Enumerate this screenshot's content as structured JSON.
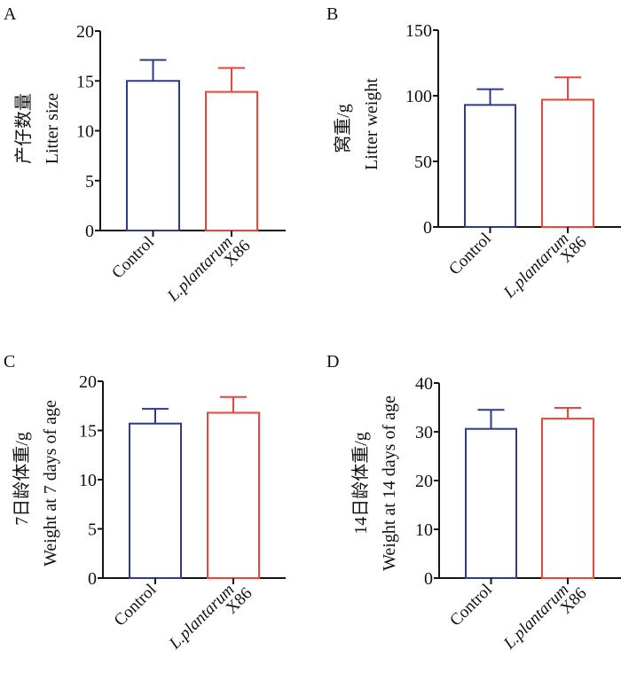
{
  "figure": {
    "colors": {
      "control": "#2e3a8c",
      "treatment": "#e8453c",
      "axis": "#1a1410"
    }
  },
  "chart_data": [
    {
      "type": "bar",
      "panel": "A",
      "title": "",
      "ylabel_cn": "产仔数量",
      "ylabel": "Litter size",
      "xlabel": "",
      "categories": [
        "Control",
        "L.plantarum X86"
      ],
      "category_lines": [
        [
          "Control"
        ],
        [
          "L.plantarum",
          "X86"
        ]
      ],
      "values": [
        15.0,
        13.9
      ],
      "error_upper": [
        17.1,
        16.3
      ],
      "ylim": [
        0,
        20
      ],
      "yticks": [
        0,
        5,
        10,
        15,
        20
      ],
      "grid": false,
      "legend": "none"
    },
    {
      "type": "bar",
      "panel": "B",
      "title": "",
      "ylabel_cn": "窝重/g",
      "ylabel": "Litter weight",
      "xlabel": "",
      "categories": [
        "Control",
        "L.plantarum X86"
      ],
      "category_lines": [
        [
          "Control"
        ],
        [
          "L.plantarum",
          "X86"
        ]
      ],
      "values": [
        93,
        97
      ],
      "error_upper": [
        105,
        114
      ],
      "ylim": [
        0,
        150
      ],
      "yticks": [
        0,
        50,
        100,
        150
      ],
      "grid": false,
      "legend": "none"
    },
    {
      "type": "bar",
      "panel": "C",
      "title": "",
      "ylabel_cn": "7日龄体重/g",
      "ylabel": "Weight at 7 days of age",
      "xlabel": "",
      "categories": [
        "Control",
        "L.plantarum X86"
      ],
      "category_lines": [
        [
          "Control"
        ],
        [
          "L.plantarum",
          "X86"
        ]
      ],
      "values": [
        15.7,
        16.8
      ],
      "error_upper": [
        17.2,
        18.4
      ],
      "ylim": [
        0,
        20
      ],
      "yticks": [
        0,
        5,
        10,
        15,
        20
      ],
      "grid": false,
      "legend": "none"
    },
    {
      "type": "bar",
      "panel": "D",
      "title": "",
      "ylabel_cn": "14日龄体重/g",
      "ylabel": "Weight at 14 days of age",
      "xlabel": "",
      "categories": [
        "Control",
        "L.plantarum X86"
      ],
      "category_lines": [
        [
          "Control"
        ],
        [
          "L.plantarum",
          "X86"
        ]
      ],
      "values": [
        30.6,
        32.7
      ],
      "error_upper": [
        34.5,
        34.9
      ],
      "ylim": [
        0,
        40
      ],
      "yticks": [
        0,
        10,
        20,
        30,
        40
      ],
      "grid": false,
      "legend": "none"
    }
  ]
}
